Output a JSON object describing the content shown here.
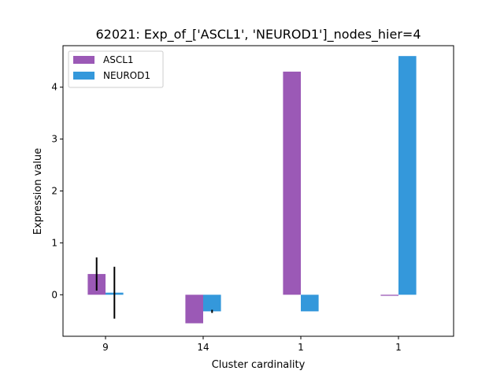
{
  "chart_data": {
    "type": "bar",
    "title": "62021: Exp_of_['ASCL1', 'NEUROD1']_nodes_hier=4",
    "xlabel": "Cluster cardinality",
    "ylabel": "Expression value",
    "categories": [
      "9",
      "14",
      "1",
      "1"
    ],
    "ylim": [
      -0.8,
      4.8
    ],
    "yticks": [
      0,
      1,
      2,
      3,
      4
    ],
    "legend_position": "top-left",
    "grid": false,
    "series": [
      {
        "name": "ASCL1",
        "color": "#9b59b6",
        "values": [
          0.4,
          -0.55,
          4.3,
          -0.02
        ],
        "errors": [
          0.32,
          0.0,
          0.0,
          0.0
        ]
      },
      {
        "name": "NEUROD1",
        "color": "#3498db",
        "values": [
          0.04,
          -0.32,
          -0.32,
          4.6
        ],
        "errors": [
          0.5,
          0.03,
          0.0,
          0.0
        ]
      }
    ]
  }
}
